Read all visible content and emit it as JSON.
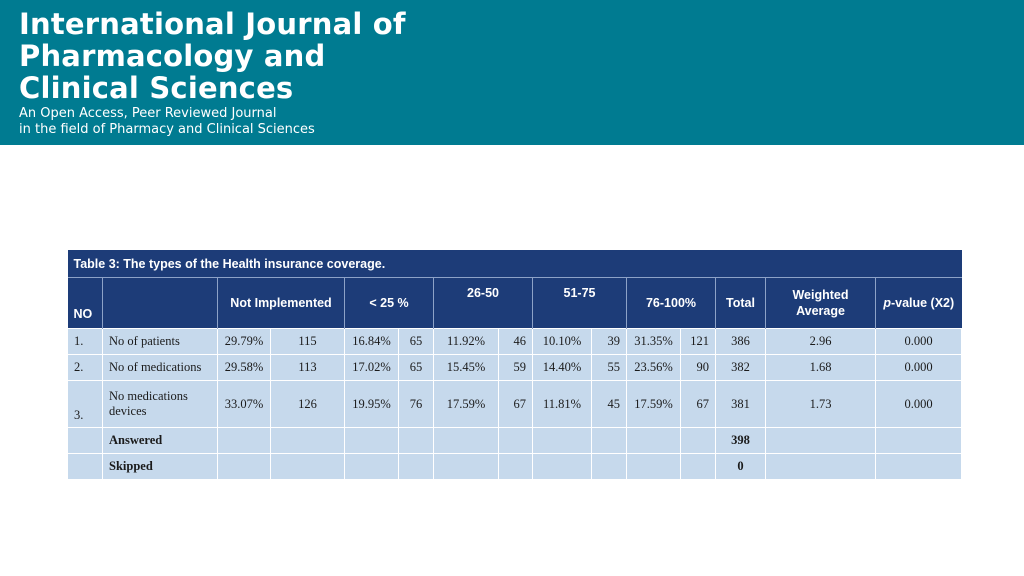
{
  "header": {
    "title_lines": [
      "International Journal of",
      "Pharmacology and",
      "Clinical Sciences"
    ],
    "subtitle_lines": [
      "An Open Access, Peer Reviewed Journal",
      "in the field of Pharmacy and Clinical Sciences"
    ],
    "background_color": "#007b91"
  },
  "table": {
    "caption": "Table 3: The types of the Health insurance coverage.",
    "headers": {
      "no": "NO",
      "not_implemented": "Not Implemented",
      "lt25": "< 25 %",
      "r26_50": "26-50",
      "r51_75": "51-75",
      "r76_100": "76-100%",
      "total": "Total",
      "weighted_average_line1": "Weighted",
      "weighted_average_line2": "Average",
      "p_value_italic": "p",
      "p_value_rest": "-value (X2)"
    },
    "rows": [
      {
        "no": "1.",
        "item": "No of patients",
        "ni_pct": "29.79%",
        "ni_n": "115",
        "lt25_pct": "16.84%",
        "lt25_n": "65",
        "r26_pct": "11.92%",
        "r26_n": "46",
        "r51_pct": "10.10%",
        "r51_n": "39",
        "r76_pct": "31.35%",
        "r76_n": "121",
        "total": "386",
        "wavg": "2.96",
        "p": "0.000"
      },
      {
        "no": "2.",
        "item": "No of medications",
        "ni_pct": "29.58%",
        "ni_n": "113",
        "lt25_pct": "17.02%",
        "lt25_n": "65",
        "r26_pct": "15.45%",
        "r26_n": "59",
        "r51_pct": "14.40%",
        "r51_n": "55",
        "r76_pct": "23.56%",
        "r76_n": "90",
        "total": "382",
        "wavg": "1.68",
        "p": "0.000"
      },
      {
        "no": "3.",
        "item_line1": "No medications",
        "item_line2": "devices",
        "ni_pct": "33.07%",
        "ni_n": "126",
        "lt25_pct": "19.95%",
        "lt25_n": "76",
        "r26_pct": "17.59%",
        "r26_n": "67",
        "r51_pct": "11.81%",
        "r51_n": "45",
        "r76_pct": "17.59%",
        "r76_n": "67",
        "total": "381",
        "wavg": "1.73",
        "p": "0.000"
      }
    ],
    "answered": {
      "label": "Answered",
      "total": "398"
    },
    "skipped": {
      "label": "Skipped",
      "total": "0"
    },
    "header_color": "#1d3c78",
    "cell_color": "#c6d9ec"
  }
}
